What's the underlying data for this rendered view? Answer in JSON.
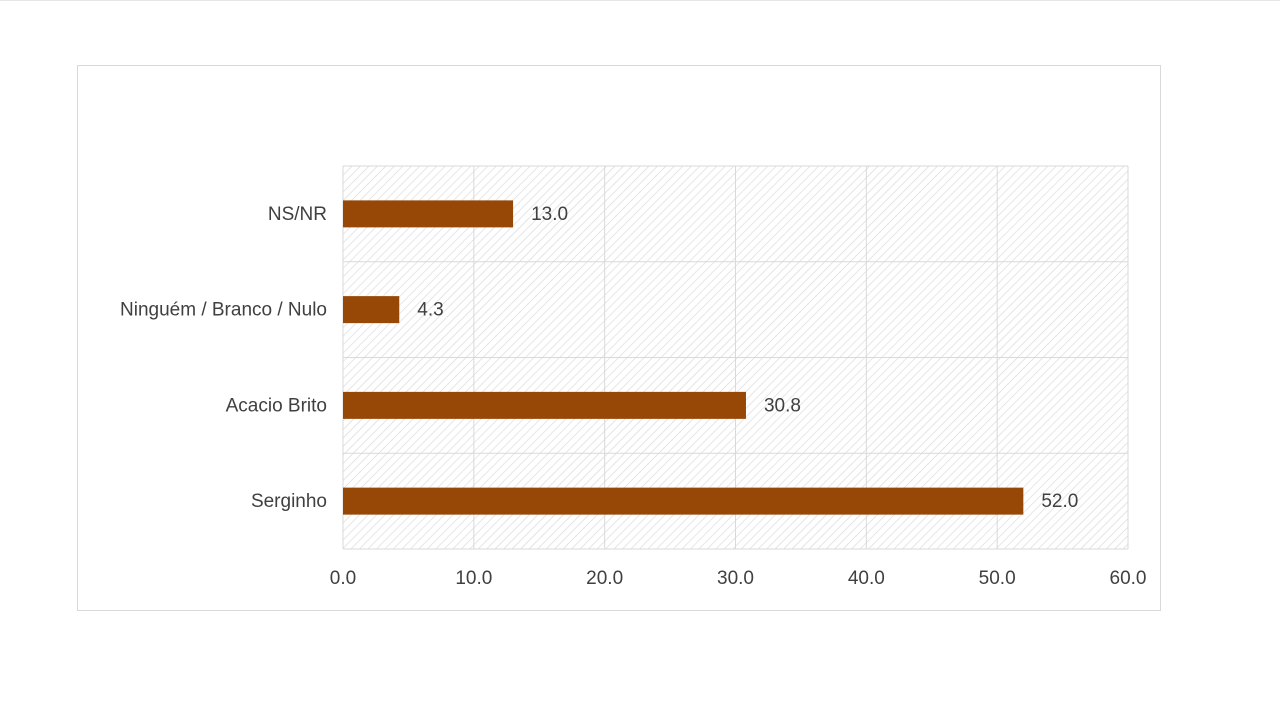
{
  "chart_data": {
    "type": "barh",
    "categories": [
      "NS/NR",
      "Ninguém / Branco / Nulo",
      "Acacio Brito",
      "Serginho"
    ],
    "values": [
      13,
      4.3,
      30.8,
      52
    ],
    "value_labels": [
      "13.0",
      "4.3",
      "30.8",
      "52.0"
    ],
    "color": "#974706",
    "xlim": [
      0,
      60
    ],
    "xticks": [
      {
        "value": 0,
        "label": "0.0"
      },
      {
        "value": 10,
        "label": "10.0"
      },
      {
        "value": 20,
        "label": "20.0"
      },
      {
        "value": 30,
        "label": "30.0"
      },
      {
        "value": 40,
        "label": "40.0"
      },
      {
        "value": 50,
        "label": "50.0"
      },
      {
        "value": 60,
        "label": "60.0"
      }
    ],
    "grid": true
  }
}
